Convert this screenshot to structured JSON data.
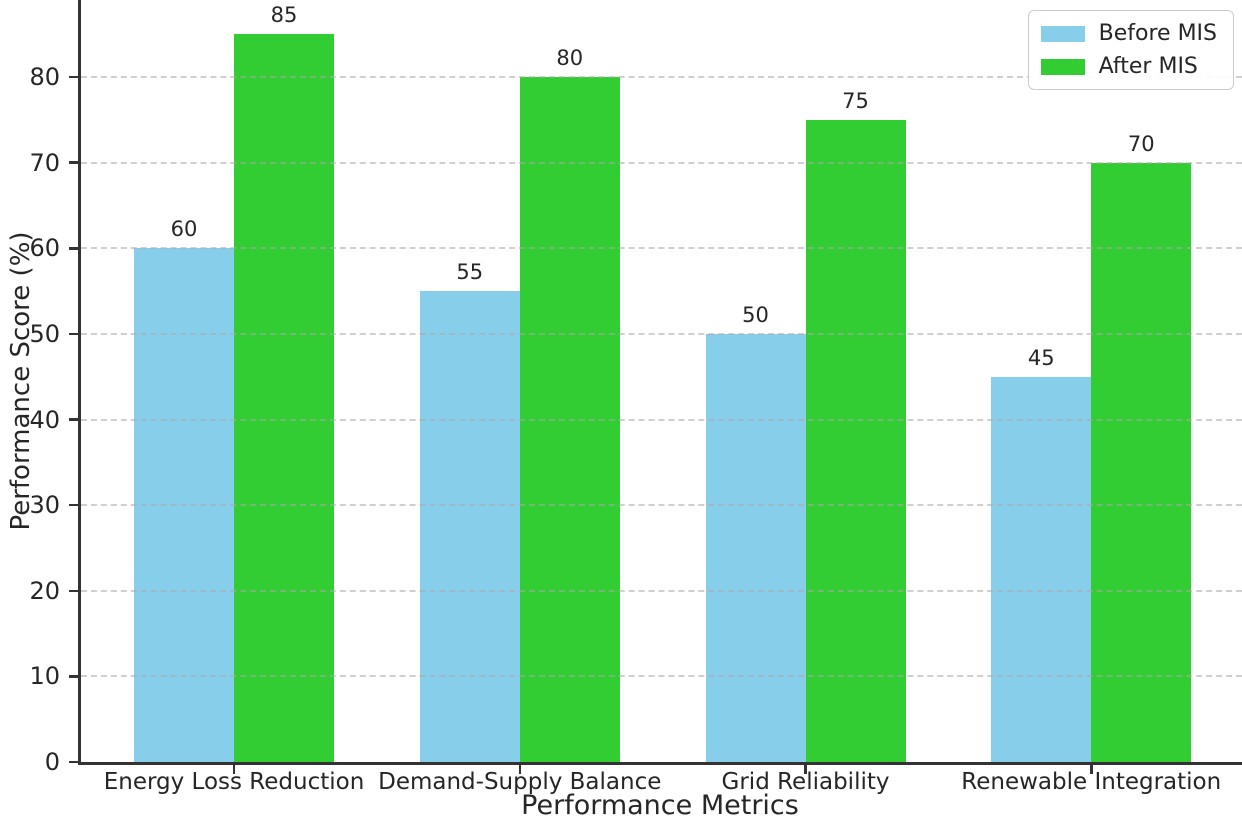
{
  "chart_data": {
    "type": "bar",
    "title": "",
    "xlabel": "Performance Metrics",
    "ylabel": "Performance Score (%)",
    "categories": [
      "Energy Loss Reduction",
      "Demand-Supply Balance",
      "Grid Reliability",
      "Renewable Integration"
    ],
    "series": [
      {
        "name": "Before MIS",
        "color": "#87CEEB",
        "values": [
          60,
          55,
          50,
          45
        ]
      },
      {
        "name": "After MIS",
        "color": "#32CD32",
        "values": [
          85,
          80,
          75,
          70
        ]
      }
    ],
    "yticks": [
      0,
      10,
      20,
      30,
      40,
      50,
      60,
      70,
      80
    ],
    "ylim": [
      0,
      89
    ],
    "grid": "horizontal-dashed",
    "grid_color": "#b0b0b0",
    "spine_color": "#333333",
    "text_color": "#262626",
    "legend_position": "upper-right",
    "bar_value_labels": true
  }
}
